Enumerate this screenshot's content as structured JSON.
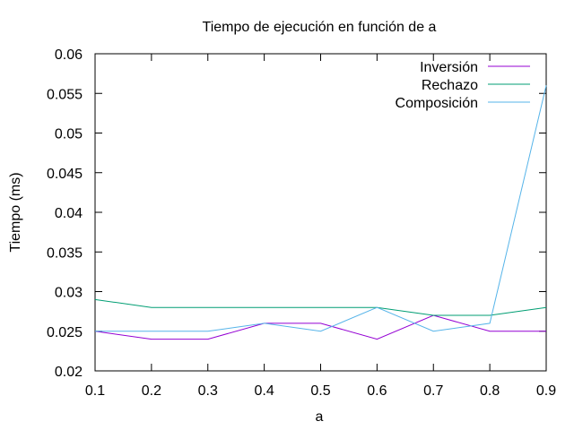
{
  "chart_data": {
    "type": "line",
    "title": "Tiempo de ejecución en función de a",
    "xlabel": "a",
    "ylabel": "Tiempo (ms)",
    "xlim": [
      0.1,
      0.9
    ],
    "ylim": [
      0.02,
      0.06
    ],
    "xticks": [
      "0.1",
      "0.2",
      "0.3",
      "0.4",
      "0.5",
      "0.6",
      "0.7",
      "0.8",
      "0.9"
    ],
    "yticks": [
      "0.02",
      "0.025",
      "0.03",
      "0.035",
      "0.04",
      "0.045",
      "0.05",
      "0.055",
      "0.06"
    ],
    "grid": false,
    "legend_position": "top-right",
    "x": [
      0.1,
      0.2,
      0.3,
      0.4,
      0.5,
      0.6,
      0.7,
      0.8,
      0.9
    ],
    "series": [
      {
        "name": "Inversión",
        "color": "#9400d3",
        "values": [
          0.025,
          0.024,
          0.024,
          0.026,
          0.026,
          0.024,
          0.027,
          0.025,
          0.025
        ]
      },
      {
        "name": "Rechazo",
        "color": "#009e73",
        "values": [
          0.029,
          0.028,
          0.028,
          0.028,
          0.028,
          0.028,
          0.027,
          0.027,
          0.028
        ]
      },
      {
        "name": "Composición",
        "color": "#56b4e9",
        "values": [
          0.025,
          0.025,
          0.025,
          0.026,
          0.025,
          0.028,
          0.025,
          0.026,
          0.056
        ]
      }
    ]
  }
}
